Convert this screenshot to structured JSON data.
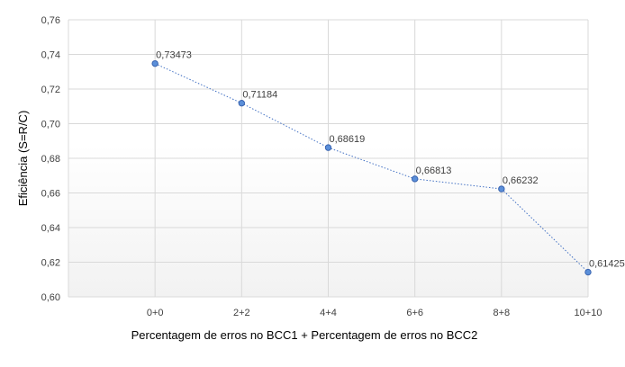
{
  "chart_data": {
    "type": "line",
    "categories": [
      "0+0",
      "2+2",
      "4+4",
      "6+6",
      "8+8",
      "10+10"
    ],
    "series": [
      {
        "values": [
          0.73473,
          0.71184,
          0.68619,
          0.66813,
          0.66232,
          0.61425
        ],
        "data_labels": [
          "0,73473",
          "0,71184",
          "0,68619",
          "0,66813",
          "0,66232",
          "0,61425"
        ]
      }
    ],
    "xlabel": "Percentagem de erros no BCC1 + Percentagem de erros no BCC2",
    "ylabel": "Eficiência (S=R/C)",
    "ylim": [
      0.6,
      0.76
    ],
    "yticks": [
      0.6,
      0.62,
      0.64,
      0.66,
      0.68,
      0.7,
      0.72,
      0.74,
      0.76
    ],
    "ytick_labels": [
      "0,60",
      "0,62",
      "0,64",
      "0,66",
      "0,68",
      "0,70",
      "0,72",
      "0,74",
      "0,76"
    ],
    "grid": true,
    "line_style": "dotted",
    "colors": {
      "line": "#4472C4",
      "marker_fill": "#5B8FD9",
      "marker_stroke": "#3A64B0",
      "grid": "#D9D9D9",
      "plot_gradient_top": "#FFFFFF",
      "plot_gradient_bottom": "#F2F2F2"
    }
  }
}
